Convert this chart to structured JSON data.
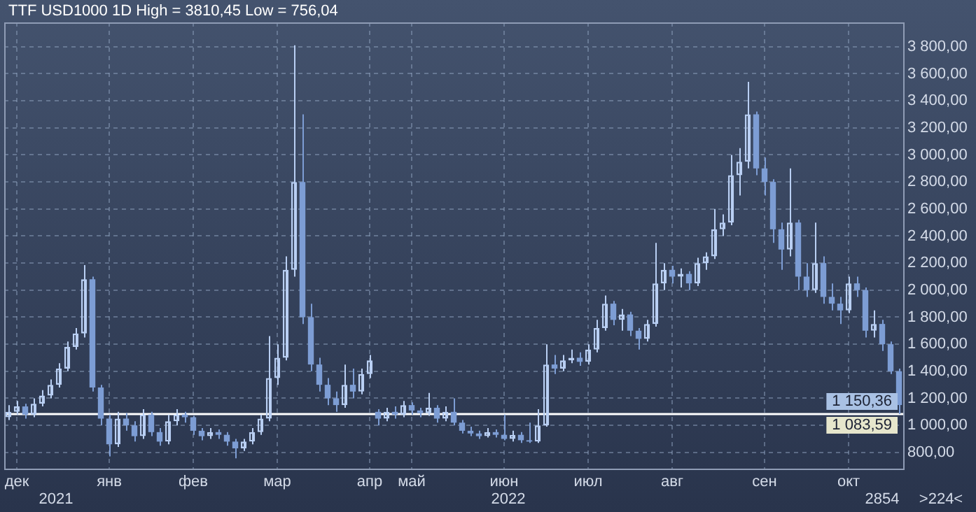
{
  "chart_data": {
    "type": "candlestick",
    "title": "TTF USD1000 1D High = 3810,45 Low = 756,04",
    "categories": [
      null,
      "дек",
      null,
      null,
      null,
      null,
      null,
      null,
      null,
      null,
      null,
      null,
      "янв",
      null,
      null,
      null,
      null,
      null,
      null,
      null,
      null,
      null,
      "фев",
      null,
      null,
      null,
      null,
      null,
      null,
      null,
      null,
      null,
      "мар",
      null,
      null,
      null,
      null,
      null,
      null,
      null,
      null,
      null,
      null,
      "апр",
      null,
      null,
      null,
      null,
      "май",
      null,
      null,
      null,
      null,
      null,
      null,
      null,
      null,
      null,
      null,
      "июн",
      null,
      null,
      null,
      null,
      null,
      null,
      null,
      null,
      null,
      "июл",
      null,
      null,
      null,
      null,
      null,
      null,
      null,
      null,
      null,
      "авг",
      null,
      null,
      null,
      null,
      null,
      null,
      null,
      null,
      null,
      null,
      "сен",
      null,
      null,
      null,
      null,
      null,
      null,
      null,
      null,
      null,
      "окт",
      null,
      null,
      null,
      null,
      null,
      null
    ],
    "ohlc": [
      [
        1060,
        1150,
        1040,
        1100
      ],
      [
        1100,
        1180,
        1080,
        1140
      ],
      [
        1140,
        1160,
        1050,
        1080
      ],
      [
        1080,
        1200,
        1060,
        1160
      ],
      [
        1160,
        1260,
        1140,
        1220
      ],
      [
        1220,
        1340,
        1200,
        1300
      ],
      [
        1300,
        1460,
        1280,
        1420
      ],
      [
        1420,
        1620,
        1400,
        1580
      ],
      [
        1580,
        1720,
        1560,
        1680
      ],
      [
        1680,
        2185,
        1650,
        2080
      ],
      [
        2080,
        2100,
        1250,
        1280
      ],
      [
        1280,
        1300,
        1000,
        1050
      ],
      [
        1050,
        1080,
        770,
        860
      ],
      [
        860,
        1100,
        840,
        1050
      ],
      [
        1050,
        1090,
        960,
        1000
      ],
      [
        1000,
        1030,
        880,
        920
      ],
      [
        920,
        1120,
        900,
        1080
      ],
      [
        1080,
        1100,
        920,
        950
      ],
      [
        950,
        980,
        850,
        880
      ],
      [
        880,
        1080,
        860,
        1030
      ],
      [
        1030,
        1120,
        1000,
        1080
      ],
      [
        1080,
        1100,
        1020,
        1060
      ],
      [
        1060,
        1070,
        930,
        960
      ],
      [
        960,
        980,
        890,
        920
      ],
      [
        920,
        980,
        900,
        950
      ],
      [
        950,
        970,
        900,
        930
      ],
      [
        930,
        950,
        850,
        880
      ],
      [
        880,
        900,
        756.04,
        830
      ],
      [
        830,
        900,
        810,
        880
      ],
      [
        880,
        980,
        860,
        950
      ],
      [
        950,
        1080,
        930,
        1050
      ],
      [
        1050,
        1660,
        1030,
        1350
      ],
      [
        1350,
        1600,
        1300,
        1500
      ],
      [
        1500,
        2250,
        1480,
        2150
      ],
      [
        2150,
        3810.45,
        2100,
        2800
      ],
      [
        2800,
        3300,
        1750,
        1800
      ],
      [
        1800,
        1900,
        1400,
        1450
      ],
      [
        1450,
        1500,
        1250,
        1300
      ],
      [
        1300,
        1350,
        1150,
        1200
      ],
      [
        1200,
        1250,
        1100,
        1150
      ],
      [
        1150,
        1450,
        1130,
        1300
      ],
      [
        1300,
        1420,
        1200,
        1250
      ],
      [
        1250,
        1420,
        1230,
        1380
      ],
      [
        1380,
        1520,
        1350,
        1480
      ],
      [
        1100,
        1120,
        1000,
        1050
      ],
      [
        1050,
        1130,
        1030,
        1100
      ],
      [
        1100,
        1140,
        1050,
        1080
      ],
      [
        1080,
        1180,
        1060,
        1150
      ],
      [
        1150,
        1170,
        1080,
        1110
      ],
      [
        1110,
        1130,
        1060,
        1090
      ],
      [
        1090,
        1240,
        1070,
        1130
      ],
      [
        1130,
        1150,
        1020,
        1050
      ],
      [
        1050,
        1140,
        1030,
        1100
      ],
      [
        1100,
        1200,
        1000,
        1020
      ],
      [
        1020,
        1040,
        940,
        960
      ],
      [
        960,
        990,
        920,
        940
      ],
      [
        940,
        960,
        900,
        920
      ],
      [
        920,
        980,
        910,
        950
      ],
      [
        950,
        970,
        910,
        930
      ],
      [
        930,
        1080,
        890,
        900
      ],
      [
        900,
        960,
        880,
        930
      ],
      [
        930,
        950,
        870,
        890
      ],
      [
        890,
        1020,
        870,
        880
      ],
      [
        880,
        1120,
        870,
        1000
      ],
      [
        1000,
        1600,
        990,
        1450
      ],
      [
        1450,
        1520,
        1380,
        1420
      ],
      [
        1420,
        1520,
        1400,
        1480
      ],
      [
        1480,
        1560,
        1460,
        1500
      ],
      [
        1500,
        1540,
        1440,
        1470
      ],
      [
        1470,
        1600,
        1450,
        1560
      ],
      [
        1560,
        1780,
        1540,
        1720
      ],
      [
        1720,
        1960,
        1700,
        1900
      ],
      [
        1900,
        1920,
        1740,
        1780
      ],
      [
        1780,
        1860,
        1700,
        1820
      ],
      [
        1820,
        1840,
        1660,
        1700
      ],
      [
        1700,
        1720,
        1560,
        1640
      ],
      [
        1640,
        1780,
        1620,
        1750
      ],
      [
        1750,
        2350,
        1730,
        2050
      ],
      [
        2050,
        2200,
        2000,
        2150
      ],
      [
        2150,
        2180,
        2050,
        2100
      ],
      [
        2100,
        2160,
        2020,
        2120
      ],
      [
        2120,
        2140,
        2000,
        2050
      ],
      [
        2050,
        2240,
        2030,
        2200
      ],
      [
        2200,
        2280,
        2150,
        2250
      ],
      [
        2250,
        2600,
        2230,
        2450
      ],
      [
        2450,
        2560,
        2400,
        2500
      ],
      [
        2500,
        3000,
        2480,
        2850
      ],
      [
        2850,
        3050,
        2700,
        2950
      ],
      [
        2950,
        3540,
        2900,
        3300
      ],
      [
        3300,
        3320,
        2850,
        2900
      ],
      [
        2900,
        2980,
        2700,
        2800
      ],
      [
        2800,
        2820,
        2350,
        2450
      ],
      [
        2450,
        2500,
        2150,
        2300
      ],
      [
        2300,
        2900,
        2250,
        2500
      ],
      [
        2500,
        2520,
        2000,
        2100
      ],
      [
        2100,
        2200,
        1950,
        2000
      ],
      [
        2000,
        2500,
        1980,
        2200
      ],
      [
        2200,
        2250,
        1900,
        1950
      ],
      [
        1950,
        2050,
        1850,
        1900
      ],
      [
        1900,
        1950,
        1750,
        1850
      ],
      [
        1850,
        2100,
        1830,
        2050
      ],
      [
        2050,
        2100,
        1950,
        2000
      ],
      [
        2000,
        2020,
        1650,
        1700
      ],
      [
        1700,
        1850,
        1650,
        1750
      ],
      [
        1750,
        1780,
        1550,
        1600
      ],
      [
        1600,
        1620,
        1380,
        1400
      ],
      [
        1400,
        1420,
        1083.59,
        1150.36
      ]
    ],
    "colors": [
      "#b9cff3",
      "#b9cff3",
      "#7d9dd4",
      "#b9cff3",
      "#b9cff3",
      "#b9cff3",
      "#b9cff3",
      "#b9cff3",
      "#b9cff3",
      "#b9cff3",
      "#7d9dd4",
      "#7d9dd4",
      "#7d9dd4",
      "#b9cff3",
      "#7d9dd4",
      "#7d9dd4",
      "#b9cff3",
      "#7d9dd4",
      "#7d9dd4",
      "#b9cff3",
      "#b9cff3",
      "#7d9dd4",
      "#7d9dd4",
      "#7d9dd4",
      "#b9cff3",
      "#7d9dd4",
      "#7d9dd4",
      "#7d9dd4",
      "#b9cff3",
      "#b9cff3",
      "#b9cff3",
      "#b9cff3",
      "#b9cff3",
      "#b9cff3",
      "#b9cff3",
      "#7d9dd4",
      "#7d9dd4",
      "#7d9dd4",
      "#7d9dd4",
      "#7d9dd4",
      "#b9cff3",
      "#7d9dd4",
      "#b9cff3",
      "#b9cff3",
      "#7d9dd4",
      "#b9cff3",
      "#7d9dd4",
      "#b9cff3",
      "#7d9dd4",
      "#7d9dd4",
      "#b9cff3",
      "#7d9dd4",
      "#b9cff3",
      "#7d9dd4",
      "#7d9dd4",
      "#7d9dd4",
      "#7d9dd4",
      "#b9cff3",
      "#7d9dd4",
      "#7d9dd4",
      "#b9cff3",
      "#7d9dd4",
      "#7d9dd4",
      "#b9cff3",
      "#b9cff3",
      "#7d9dd4",
      "#b9cff3",
      "#b9cff3",
      "#7d9dd4",
      "#b9cff3",
      "#b9cff3",
      "#b9cff3",
      "#7d9dd4",
      "#b9cff3",
      "#7d9dd4",
      "#7d9dd4",
      "#b9cff3",
      "#b9cff3",
      "#b9cff3",
      "#7d9dd4",
      "#b9cff3",
      "#7d9dd4",
      "#b9cff3",
      "#b9cff3",
      "#b9cff3",
      "#b9cff3",
      "#b9cff3",
      "#b9cff3",
      "#b9cff3",
      "#7d9dd4",
      "#7d9dd4",
      "#7d9dd4",
      "#7d9dd4",
      "#b9cff3",
      "#7d9dd4",
      "#7d9dd4",
      "#b9cff3",
      "#7d9dd4",
      "#7d9dd4",
      "#7d9dd4",
      "#b9cff3",
      "#7d9dd4",
      "#7d9dd4",
      "#b9cff3",
      "#7d9dd4",
      "#7d9dd4",
      "#7d9dd4"
    ],
    "ylim": [
      680,
      3980
    ],
    "yticks": [
      {
        "value": 800,
        "label": "800,00"
      },
      {
        "value": 1000,
        "label": "1 000,00"
      },
      {
        "value": 1200,
        "label": "1 200,00"
      },
      {
        "value": 1400,
        "label": "1 400,00"
      },
      {
        "value": 1600,
        "label": "1 600,00"
      },
      {
        "value": 1800,
        "label": "1 800,00"
      },
      {
        "value": 2000,
        "label": "2 000,00"
      },
      {
        "value": 2200,
        "label": "2 200,00"
      },
      {
        "value": 2400,
        "label": "2 400,00"
      },
      {
        "value": 2600,
        "label": "2 600,00"
      },
      {
        "value": 2800,
        "label": "2 800,00"
      },
      {
        "value": 3000,
        "label": "3 000,00"
      },
      {
        "value": 3200,
        "label": "3 200,00"
      },
      {
        "value": 3400,
        "label": "3 400,00"
      },
      {
        "value": 3600,
        "label": "3 600,00"
      },
      {
        "value": 3800,
        "label": "3 800,00"
      }
    ],
    "grid": true,
    "ref_lines": [
      {
        "axis": "y",
        "value": 1083.59,
        "label": "1 083,59",
        "color": "#ffffff"
      }
    ],
    "annotations": [
      "1 150,36",
      "2021",
      "2022",
      "2854",
      ">224<"
    ]
  }
}
